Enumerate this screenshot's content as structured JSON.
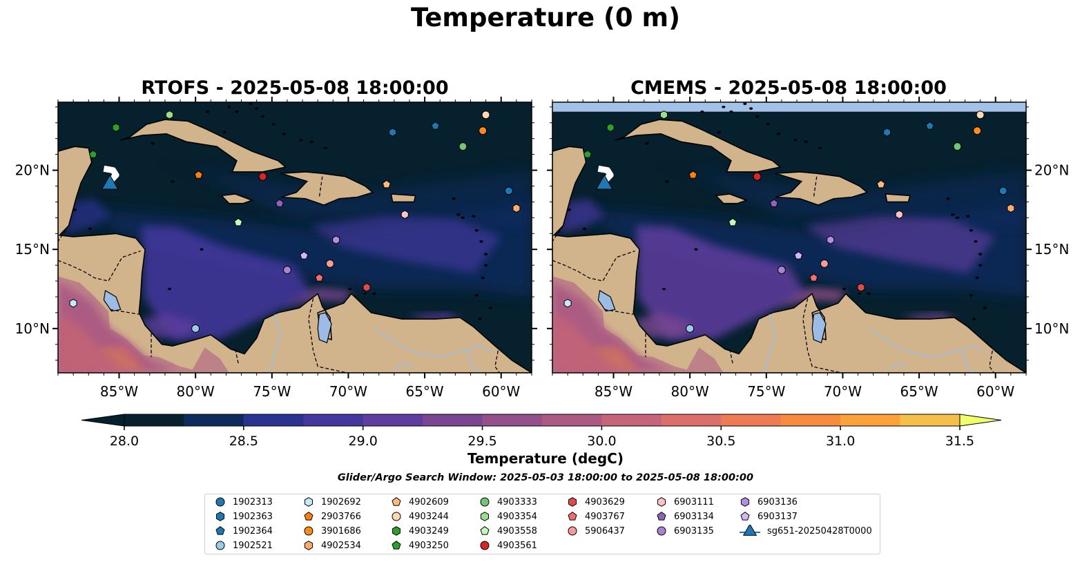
{
  "figure": {
    "suptitle": "Temperature (0 m)",
    "panels": [
      {
        "title": "RTOFS - 2025-05-08 18:00:00"
      },
      {
        "title": "CMEMS - 2025-05-08 18:00:00"
      }
    ],
    "lon_ticks": [
      "85°W",
      "80°W",
      "75°W",
      "70°W",
      "65°W",
      "60°W"
    ],
    "lat_ticks": [
      "20°N",
      "15°N",
      "10°N"
    ],
    "lon_range": [
      -89,
      -58
    ],
    "lat_range": [
      7.2,
      24.3
    ],
    "colors": {
      "land": "#d2b48c",
      "ocean_dark": "#06202e",
      "lake": "#9cbce6",
      "nodata": "#a4c1e8"
    }
  },
  "colorbar": {
    "ticks": [
      "28.0",
      "28.5",
      "29.0",
      "29.5",
      "30.0",
      "30.5",
      "31.0",
      "31.5"
    ],
    "label": "Temperature (degC)",
    "range": [
      27.75,
      31.75
    ],
    "colors": [
      "#06202e",
      "#0f2b5e",
      "#2a3390",
      "#44379f",
      "#5e3d9f",
      "#7a4691",
      "#93508a",
      "#ac5a84",
      "#c6647b",
      "#dc6f6a",
      "#ed7b53",
      "#f78b3e",
      "#fba23a",
      "#f5c04a",
      "#f2df5a"
    ]
  },
  "search_window": "Glider/Argo Search Window: 2025-05-03 18:00:00 to 2025-05-08 18:00:00",
  "legend": [
    {
      "label": "1902313",
      "marker": "circle",
      "color": "#1f77b4",
      "lon": -59.5,
      "lat": 18.7
    },
    {
      "label": "1902363",
      "marker": "hexagon",
      "color": "#1f77b4",
      "lon": -67.1,
      "lat": 22.4
    },
    {
      "label": "1902364",
      "marker": "pentagon",
      "color": "#1f77b4",
      "lon": -64.3,
      "lat": 22.8
    },
    {
      "label": "1902521",
      "marker": "circle",
      "color": "#9ecae9",
      "lon": -80.0,
      "lat": 10.0
    },
    {
      "label": "1902692",
      "marker": "hexagon",
      "color": "#c6e9fa",
      "lon": -88.0,
      "lat": 11.6
    },
    {
      "label": "2903766",
      "marker": "pentagon",
      "color": "#ff7f0e",
      "lon": -79.8,
      "lat": 19.7
    },
    {
      "label": "3901686",
      "marker": "circle",
      "color": "#ff8c1a",
      "lon": -61.2,
      "lat": 22.5
    },
    {
      "label": "4902534",
      "marker": "hexagon",
      "color": "#fdae6b",
      "lon": -59.0,
      "lat": 17.6
    },
    {
      "label": "4902609",
      "marker": "pentagon",
      "color": "#fdbb7a",
      "lon": -67.5,
      "lat": 19.1
    },
    {
      "label": "4903244",
      "marker": "circle",
      "color": "#fdd9b6",
      "lon": -61.0,
      "lat": 23.5
    },
    {
      "label": "4903249",
      "marker": "hexagon",
      "color": "#2ca02c",
      "lon": -85.2,
      "lat": 22.7
    },
    {
      "label": "4903250",
      "marker": "pentagon",
      "color": "#2ca02c",
      "lon": -86.7,
      "lat": 21.0
    },
    {
      "label": "4903333",
      "marker": "circle",
      "color": "#74c476",
      "lon": -62.5,
      "lat": 21.5
    },
    {
      "label": "4903354",
      "marker": "hexagon",
      "color": "#98df8a",
      "lon": -81.7,
      "lat": 23.5
    },
    {
      "label": "4903558",
      "marker": "pentagon",
      "color": "#c7f5c0",
      "lon": -77.2,
      "lat": 16.7
    },
    {
      "label": "4903561",
      "marker": "circle",
      "color": "#d62728",
      "lon": -75.6,
      "lat": 19.6
    },
    {
      "label": "4903629",
      "marker": "hexagon",
      "color": "#e04a4a",
      "lon": -68.8,
      "lat": 12.6
    },
    {
      "label": "4903767",
      "marker": "pentagon",
      "color": "#f26d6d",
      "lon": -71.9,
      "lat": 13.2
    },
    {
      "label": "5906437",
      "marker": "circle",
      "color": "#f79a9a",
      "lon": -71.2,
      "lat": 14.1
    },
    {
      "label": "6903111",
      "marker": "hexagon",
      "color": "#fbc3c3",
      "lon": -66.3,
      "lat": 17.2
    },
    {
      "label": "6903134",
      "marker": "pentagon",
      "color": "#8e63b8",
      "lon": -74.5,
      "lat": 17.9
    },
    {
      "label": "6903135",
      "marker": "circle",
      "color": "#a883d1",
      "lon": -74.0,
      "lat": 13.7
    },
    {
      "label": "6903136",
      "marker": "hexagon",
      "color": "#b48fe0",
      "lon": -70.8,
      "lat": 15.6
    },
    {
      "label": "6903137",
      "marker": "pentagon",
      "color": "#d3b6f3",
      "lon": -72.9,
      "lat": 14.6
    },
    {
      "label": "sg651-20250428T0000",
      "marker": "triangle",
      "color": "#1f77b4",
      "lon": -85.6,
      "lat": 19.1
    }
  ]
}
